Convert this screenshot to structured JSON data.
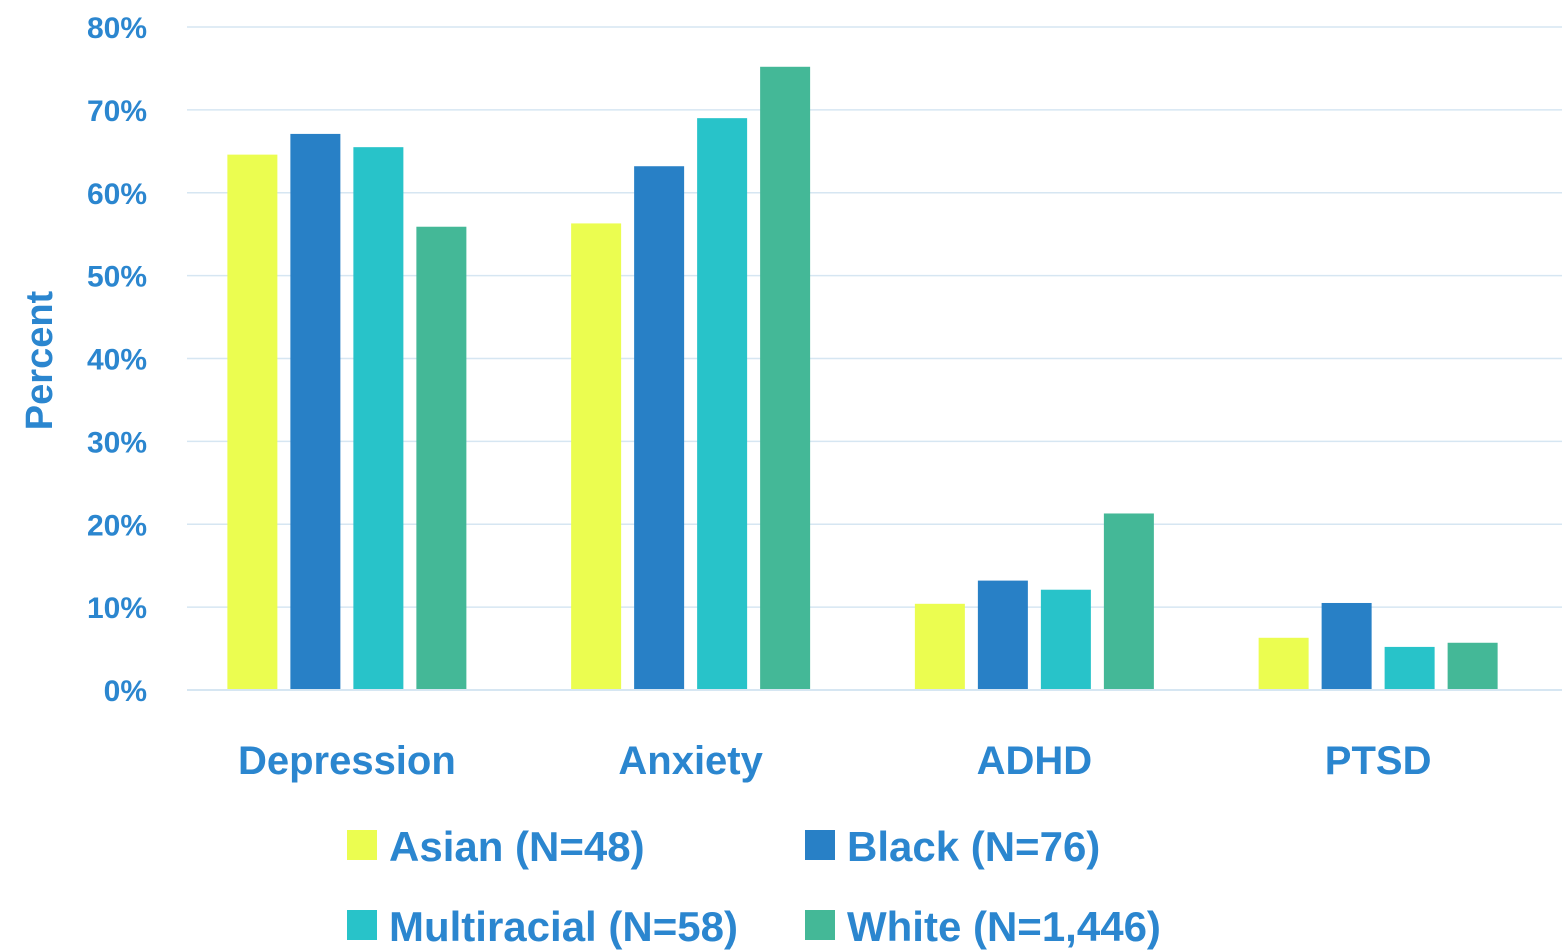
{
  "chart_data": {
    "type": "bar",
    "ylabel": "Percent",
    "ylim": [
      0,
      80
    ],
    "y_tick_format": "percent",
    "y_ticks": [
      "0%",
      "10%",
      "20%",
      "30%",
      "40%",
      "50%",
      "60%",
      "70%",
      "80%"
    ],
    "categories": [
      "Depression",
      "Anxiety",
      "ADHD",
      "PTSD"
    ],
    "series": [
      {
        "name": "Asian (N=48)",
        "color": "#ebfd50",
        "values": [
          64.6,
          56.3,
          10.4,
          6.3
        ]
      },
      {
        "name": "Black (N=76)",
        "color": "#2880c6",
        "values": [
          67.1,
          63.2,
          13.2,
          10.5
        ]
      },
      {
        "name": "Multiracial (N=58)",
        "color": "#28c3c9",
        "values": [
          65.5,
          69.0,
          12.1,
          5.2
        ]
      },
      {
        "name": "White (N=1,446)",
        "color": "#44b897",
        "values": [
          55.9,
          75.2,
          21.3,
          5.7
        ]
      }
    ],
    "grid": true,
    "legend_position": "bottom",
    "text_color": "#2b86cf",
    "grid_color": "#d6e6f2"
  }
}
